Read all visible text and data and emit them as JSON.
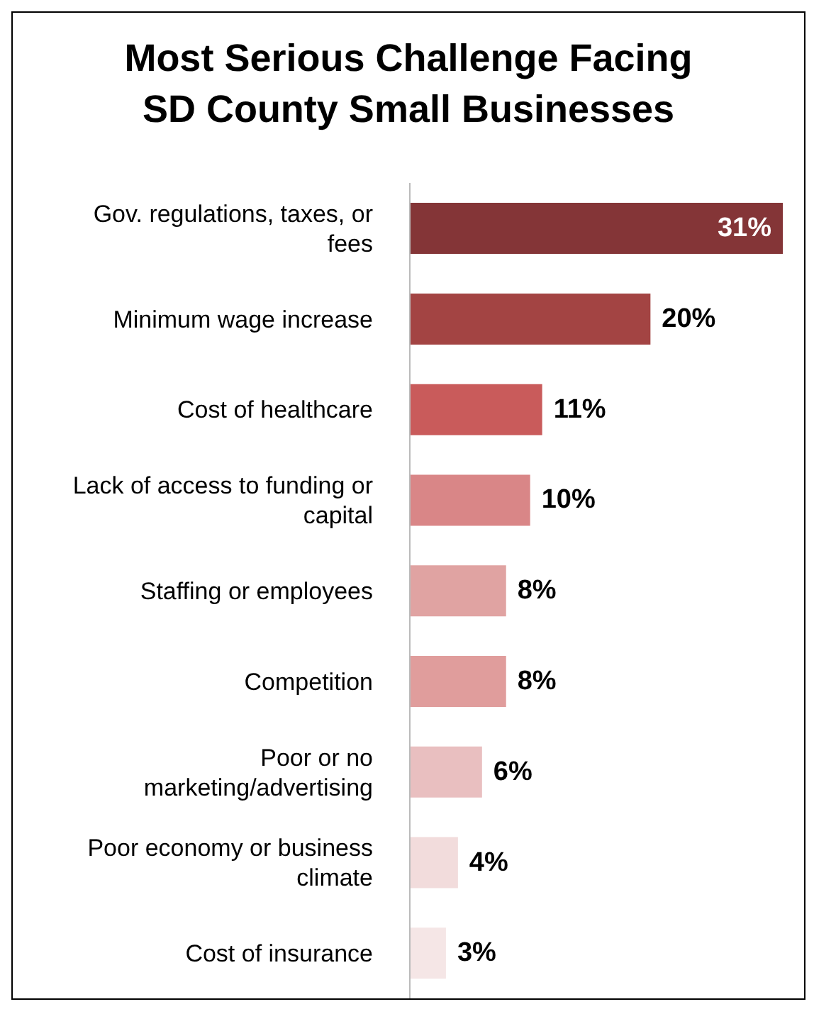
{
  "chart_data": {
    "type": "bar",
    "orientation": "horizontal",
    "title": "Most Serious Challenge Facing SD County Small Businesses",
    "categories": [
      "Gov. regulations, taxes, or fees",
      "Minimum wage increase",
      "Cost of healthcare",
      "Lack of access to funding or capital",
      "Staffing or employees",
      "Competition",
      "Poor or no marketing/advertising",
      "Poor economy or business climate",
      "Cost of insurance"
    ],
    "values": [
      31,
      20,
      11,
      10,
      8,
      8,
      6,
      4,
      3
    ],
    "value_labels": [
      "31%",
      "20%",
      "11%",
      "10%",
      "8%",
      "8%",
      "6%",
      "4%",
      "3%"
    ],
    "colors": [
      "#843537",
      "#a34443",
      "#c95b5b",
      "#d98687",
      "#e0a3a2",
      "#e09d9c",
      "#e9bfc0",
      "#f2dcdc",
      "#f5e6e6"
    ]
  }
}
